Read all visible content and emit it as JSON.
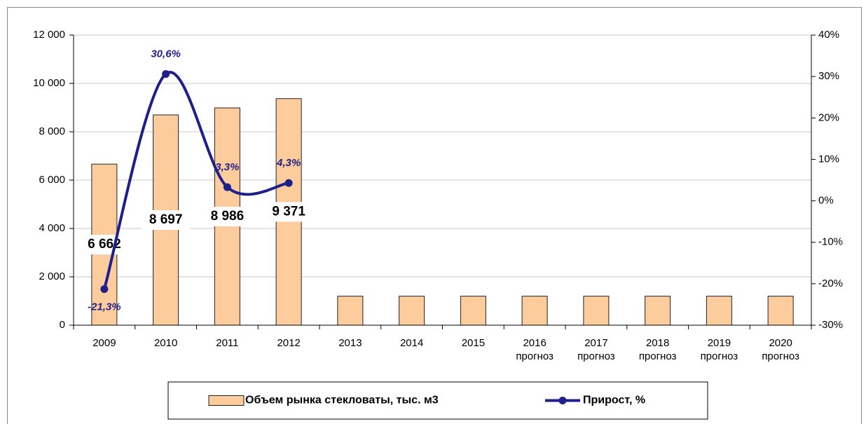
{
  "chart_data": {
    "type": "bar",
    "categories": [
      "2009",
      "2010",
      "2011",
      "2012",
      "2013",
      "2014",
      "2015",
      "2016 прогноз",
      "2017 прогноз",
      "2018 прогноз",
      "2019 прогноз",
      "2020 прогноз"
    ],
    "series": [
      {
        "name": "Объем рынка стекловаты, тыс. м3",
        "type": "bar",
        "color": "#fccc9c",
        "values": [
          6662,
          8697,
          8986,
          9371,
          1200,
          1200,
          1200,
          1200,
          1200,
          1200,
          1200,
          1200
        ],
        "value_labels": [
          "6 662",
          "8 697",
          "8 986",
          "9 371",
          null,
          null,
          null,
          null,
          null,
          null,
          null,
          null
        ]
      },
      {
        "name": "Прирост, %",
        "type": "line",
        "axis": "y2",
        "color": "#1f1f8c",
        "values": [
          -21.3,
          30.6,
          3.3,
          4.3,
          null,
          null,
          null,
          null,
          null,
          null,
          null,
          null
        ],
        "value_labels": [
          "-21,3%",
          "30,6%",
          "3,3%",
          "4,3%",
          null,
          null,
          null,
          null,
          null,
          null,
          null,
          null
        ]
      }
    ],
    "ylim": [
      0,
      12000
    ],
    "yticks": [
      0,
      {
        "value": 2000,
        "label": "2 000"
      },
      {
        "value": 4000,
        "label": "4 000"
      },
      {
        "value": 6000,
        "label": "6 000"
      },
      {
        "value": 8000,
        "label": "8 000"
      },
      {
        "value": 10000,
        "label": "10 000"
      },
      {
        "value": 12000,
        "label": "12 000"
      }
    ],
    "y2lim": [
      -30,
      40
    ],
    "y2ticks": [
      {
        "value": -30,
        "label": "-30%"
      },
      {
        "value": -20,
        "label": "-20%"
      },
      {
        "value": -10,
        "label": "-10%"
      },
      {
        "value": 0,
        "label": "0%"
      },
      {
        "value": 10,
        "label": "10%"
      },
      {
        "value": 20,
        "label": "20%"
      },
      {
        "value": 30,
        "label": "30%"
      },
      {
        "value": 40,
        "label": "40%"
      }
    ],
    "grid": true,
    "legend": "bottom"
  }
}
